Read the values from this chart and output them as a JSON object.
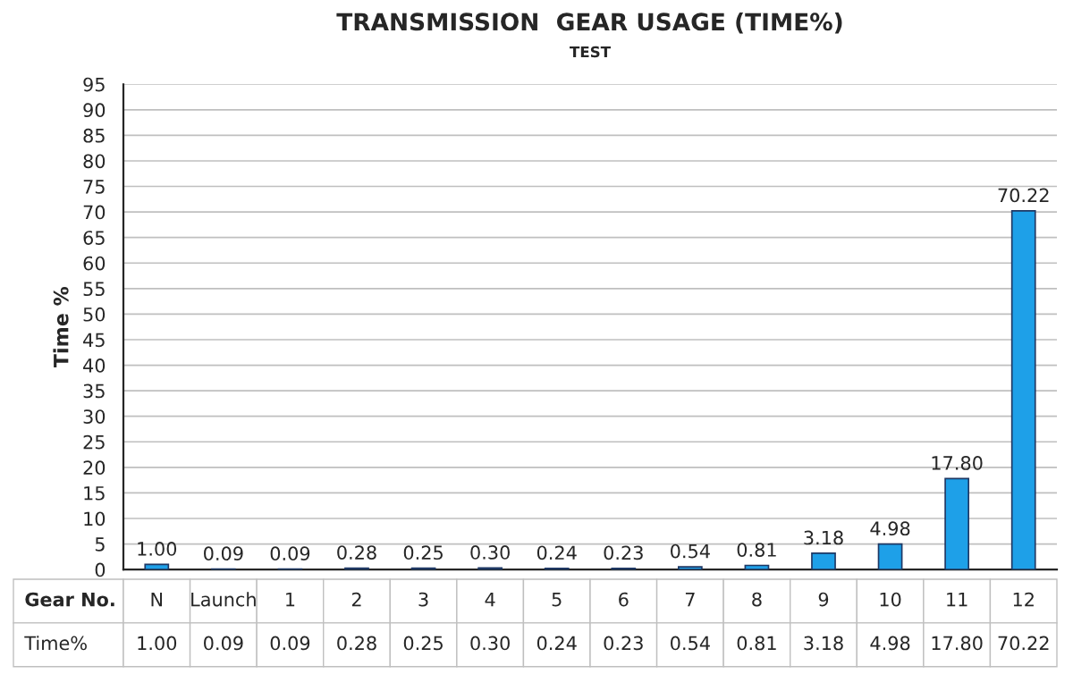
{
  "chart_data": {
    "type": "bar",
    "title": "TRANSMISSION  GEAR USAGE (TIME%)",
    "subtitle": "TEST",
    "ylabel": "Time %",
    "xlabel": "Gear No.",
    "categories": [
      "N",
      "Launch",
      "1",
      "2",
      "3",
      "4",
      "5",
      "6",
      "7",
      "8",
      "9",
      "10",
      "11",
      "12"
    ],
    "series": [
      {
        "name": "Time%",
        "color": "#1ea0e8",
        "values": [
          1.0,
          0.09,
          0.09,
          0.28,
          0.25,
          0.3,
          0.24,
          0.23,
          0.54,
          0.81,
          3.18,
          4.98,
          17.8,
          70.22
        ],
        "value_labels": [
          "1.00",
          "0.09",
          "0.09",
          "0.28",
          "0.25",
          "0.30",
          "0.24",
          "0.23",
          "0.54",
          "0.81",
          "3.18",
          "4.98",
          "17.80",
          "70.22"
        ]
      }
    ],
    "ylim": [
      0,
      95
    ],
    "yticks": [
      0,
      5,
      10,
      15,
      20,
      25,
      30,
      35,
      40,
      45,
      50,
      55,
      60,
      65,
      70,
      75,
      80,
      85,
      90,
      95
    ],
    "grid": "y"
  }
}
